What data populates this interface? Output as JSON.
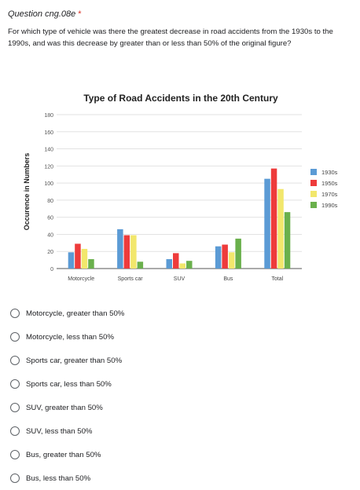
{
  "question": {
    "title": "Question cng.08e",
    "required_marker": "*",
    "text": "For which type of vehicle was there the greatest decrease in road accidents from the 1930s to the 1990s, and was this decrease by greater than or less than 50% of the original figure?"
  },
  "chart_data": {
    "type": "bar",
    "title": "Type of Road Accidents in the 20th Century",
    "xlabel": "",
    "ylabel": "Occurence in Numbers",
    "ylim": [
      0,
      180
    ],
    "yticks": [
      0,
      20,
      40,
      60,
      80,
      100,
      120,
      140,
      160,
      180
    ],
    "grid": true,
    "legend_position": "right",
    "categories": [
      "Motorcycle",
      "Sports car",
      "SUV",
      "Bus",
      "Total"
    ],
    "series": [
      {
        "name": "1930s",
        "color": "#5b9bd5",
        "values": [
          19,
          46,
          11,
          26,
          105
        ]
      },
      {
        "name": "1950s",
        "color": "#ee3b3b",
        "values": [
          29,
          39,
          18,
          28,
          117
        ]
      },
      {
        "name": "1970s",
        "color": "#f2e76c",
        "values": [
          23,
          39,
          6,
          19,
          93
        ]
      },
      {
        "name": "1990s",
        "color": "#6ab04c",
        "values": [
          11,
          8,
          9,
          35,
          66
        ]
      }
    ]
  },
  "options": [
    "Motorcycle, greater than 50%",
    "Motorcycle, less than 50%",
    "Sports car, greater than 50%",
    "Sports car, less than 50%",
    "SUV, greater than 50%",
    "SUV, less than 50%",
    "Bus, greater than 50%",
    "Bus, less than 50%"
  ]
}
